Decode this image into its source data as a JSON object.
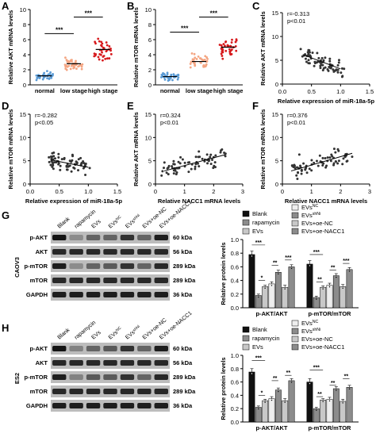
{
  "panel_letters": [
    "A",
    "B",
    "C",
    "D",
    "E",
    "F",
    "G",
    "H"
  ],
  "colors": {
    "normal": "#5b9bd5",
    "low": "#f4a582",
    "high": "#d7191c",
    "scatter": "#333333",
    "bar_black": "#111111",
    "bar_gray": "#8c8c8c",
    "bar_light": "#c8c8c8",
    "bar_white": "#ffffff",
    "bar_white2": "#eeeeee"
  },
  "chart_data": [
    {
      "id": "A",
      "type": "scatter",
      "ylabel": "Relative AKT mRNA levels",
      "categories": [
        "normal",
        "low stage",
        "high stage"
      ],
      "ylim": [
        0,
        10
      ],
      "yticks": [
        "0",
        "2",
        "4",
        "6",
        "8",
        "10"
      ],
      "means": [
        1.2,
        2.8,
        4.7
      ],
      "sig": [
        "***",
        "***"
      ]
    },
    {
      "id": "B",
      "type": "scatter",
      "ylabel": "Relative mTOR mRNA levels",
      "categories": [
        "normal",
        "low stage",
        "high stage"
      ],
      "ylim": [
        0,
        10
      ],
      "yticks": [
        "0",
        "2",
        "4",
        "6",
        "8",
        "10"
      ],
      "means": [
        1.1,
        3.1,
        5.0
      ],
      "sig": [
        "***",
        "***"
      ]
    },
    {
      "id": "C",
      "type": "scatter",
      "stats": [
        "r=-0.313",
        "p<0.01"
      ],
      "xlabel": "Relative expression of miR-18a-5p",
      "ylabel": "Relative AKT mRNA levels",
      "xlim": [
        0,
        1.5
      ],
      "ylim": [
        0,
        15
      ],
      "xticks": [
        "0.0",
        "0.5",
        "1.0",
        "1.5"
      ],
      "yticks": [
        "0",
        "5",
        "10",
        "15"
      ],
      "fit": [
        [
          0.35,
          6.2
        ],
        [
          1.0,
          3.2
        ]
      ]
    },
    {
      "id": "D",
      "type": "scatter",
      "stats": [
        "r=-0.282",
        "p<0.05"
      ],
      "xlabel": "Relative expression of miR-18a-5p",
      "ylabel": "Relative mTOR mRNA levels",
      "xlim": [
        0,
        1.5
      ],
      "ylim": [
        0,
        15
      ],
      "xticks": [
        "0.0",
        "0.5",
        "1.0",
        "1.5"
      ],
      "yticks": [
        "0",
        "5",
        "10",
        "15"
      ],
      "fit": [
        [
          0.35,
          5.2
        ],
        [
          1.0,
          3.6
        ]
      ]
    },
    {
      "id": "E",
      "type": "scatter",
      "stats": [
        "r=0.324",
        "p<0.01"
      ],
      "xlabel": "Relative NACC1 mRNA levels",
      "ylabel": "Relative AKT mRNA levels",
      "xlim": [
        0,
        3
      ],
      "ylim": [
        0,
        15
      ],
      "xticks": [
        "0",
        "1",
        "2",
        "3"
      ],
      "yticks": [
        "0",
        "5",
        "10",
        "15"
      ],
      "fit": [
        [
          0.3,
          2.8
        ],
        [
          2.4,
          6.3
        ]
      ]
    },
    {
      "id": "F",
      "type": "scatter",
      "stats": [
        "r=0.376",
        "p<0.01"
      ],
      "xlabel": "Relative NACC1 mRNA levels",
      "ylabel": "Relative mTOR mRNA levels",
      "xlim": [
        0,
        3
      ],
      "ylim": [
        0,
        15
      ],
      "xticks": [
        "0",
        "1",
        "2",
        "3"
      ],
      "yticks": [
        "0",
        "5",
        "10",
        "15"
      ],
      "fit": [
        [
          0.3,
          2.8
        ],
        [
          2.4,
          6.6
        ]
      ]
    },
    {
      "id": "G",
      "type": "bar",
      "ylabel": "Relative protein levels",
      "categories": [
        "p-AKT/AKT",
        "p-mTOR/mTOR"
      ],
      "ylim": [
        0,
        1.0
      ],
      "yticks": [
        "0.0",
        "0.2",
        "0.4",
        "0.6",
        "0.8",
        "1.0"
      ],
      "series": [
        {
          "name": "Blank",
          "values": [
            0.78,
            0.64
          ],
          "err": [
            0.05,
            0.05
          ]
        },
        {
          "name": "rapamycin",
          "values": [
            0.18,
            0.15
          ],
          "err": [
            0.02,
            0.02
          ]
        },
        {
          "name": "EVs",
          "values": [
            0.31,
            0.3
          ],
          "err": [
            0.02,
            0.02
          ]
        },
        {
          "name": "EVs^NC",
          "values": [
            0.35,
            0.33
          ],
          "err": [
            0.03,
            0.03
          ]
        },
        {
          "name": "EVs^shNi",
          "values": [
            0.52,
            0.47
          ],
          "err": [
            0.03,
            0.03
          ]
        },
        {
          "name": "EVs+oe-NC",
          "values": [
            0.3,
            0.31
          ],
          "err": [
            0.03,
            0.03
          ]
        },
        {
          "name": "EVs+oe-NACC1",
          "values": [
            0.6,
            0.56
          ],
          "err": [
            0.03,
            0.03
          ]
        }
      ],
      "sig": [
        "***",
        "*",
        "**",
        "***"
      ]
    },
    {
      "id": "H",
      "type": "bar",
      "ylabel": "Relative protein levels",
      "categories": [
        "p-AKT/AKT",
        "p-mTOR/mTOR"
      ],
      "ylim": [
        0,
        1.0
      ],
      "yticks": [
        "0.0",
        "0.2",
        "0.4",
        "0.6",
        "0.8",
        "1.0"
      ],
      "series": [
        {
          "name": "Blank",
          "values": [
            0.75,
            0.6
          ],
          "err": [
            0.05,
            0.05
          ]
        },
        {
          "name": "rapamycin",
          "values": [
            0.22,
            0.2
          ],
          "err": [
            0.02,
            0.02
          ]
        },
        {
          "name": "EVs",
          "values": [
            0.32,
            0.33
          ],
          "err": [
            0.02,
            0.02
          ]
        },
        {
          "name": "EVs^NC",
          "values": [
            0.35,
            0.34
          ],
          "err": [
            0.03,
            0.03
          ]
        },
        {
          "name": "EVs^shNi",
          "values": [
            0.48,
            0.5
          ],
          "err": [
            0.03,
            0.03
          ]
        },
        {
          "name": "EVs+oe-NC",
          "values": [
            0.32,
            0.31
          ],
          "err": [
            0.03,
            0.03
          ]
        },
        {
          "name": "EVs+oe-NACC1",
          "values": [
            0.62,
            0.52
          ],
          "err": [
            0.03,
            0.03
          ]
        }
      ],
      "sig": [
        "***",
        "*",
        "**",
        "**"
      ]
    }
  ],
  "blots": {
    "G": {
      "cell_line": "CAOV3",
      "lanes": [
        "Blank",
        "rapamycin",
        "EVs",
        "EVs^NC",
        "EVs^shNi",
        "EVs+oe-NC",
        "EVs+oe-NACC1"
      ],
      "rows": [
        {
          "name": "p-AKT",
          "kda": "60 kDa",
          "intensity": [
            0.9,
            0.3,
            0.5,
            0.5,
            0.75,
            0.5,
            0.85
          ]
        },
        {
          "name": "AKT",
          "kda": "56 kDa",
          "intensity": [
            0.8,
            0.8,
            0.8,
            0.8,
            0.8,
            0.8,
            0.8
          ]
        },
        {
          "name": "p-mTOR",
          "kda": "289 kDa",
          "intensity": [
            0.85,
            0.3,
            0.5,
            0.55,
            0.75,
            0.5,
            0.8
          ]
        },
        {
          "name": "mTOR",
          "kda": "289 kDa",
          "intensity": [
            0.8,
            0.8,
            0.8,
            0.8,
            0.8,
            0.8,
            0.8
          ]
        },
        {
          "name": "GAPDH",
          "kda": "36 kDa",
          "intensity": [
            0.85,
            0.85,
            0.85,
            0.85,
            0.85,
            0.85,
            0.85
          ]
        }
      ]
    },
    "H": {
      "cell_line": "ES2",
      "lanes": [
        "Blank",
        "rapamycin",
        "EVs",
        "EVs^NC",
        "EVs^shNi",
        "EVs+oe-NC",
        "EVs+oe-NACC1"
      ],
      "rows": [
        {
          "name": "p-AKT",
          "kda": "60 kDa",
          "intensity": [
            0.9,
            0.35,
            0.5,
            0.55,
            0.75,
            0.5,
            0.85
          ]
        },
        {
          "name": "AKT",
          "kda": "56 kDa",
          "intensity": [
            0.8,
            0.8,
            0.8,
            0.8,
            0.8,
            0.8,
            0.8
          ]
        },
        {
          "name": "p-mTOR",
          "kda": "289 kDa",
          "intensity": [
            0.85,
            0.35,
            0.55,
            0.55,
            0.75,
            0.5,
            0.8
          ]
        },
        {
          "name": "mTOR",
          "kda": "289 kDa",
          "intensity": [
            0.8,
            0.8,
            0.8,
            0.8,
            0.8,
            0.8,
            0.8
          ]
        },
        {
          "name": "GAPDH",
          "kda": "36 kDa",
          "intensity": [
            0.85,
            0.85,
            0.85,
            0.85,
            0.85,
            0.85,
            0.85
          ]
        }
      ]
    }
  }
}
